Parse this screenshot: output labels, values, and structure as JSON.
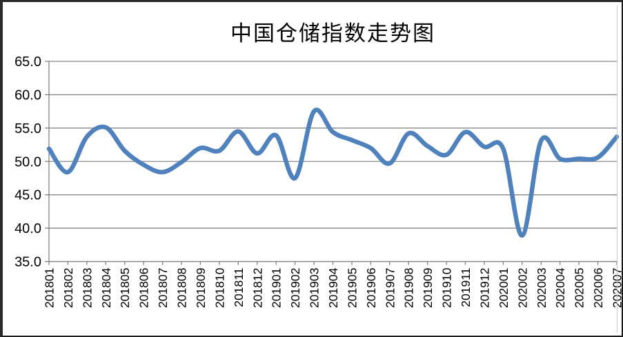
{
  "chart_data": {
    "type": "line",
    "title": "中国仓储指数走势图",
    "categories": [
      "201801",
      "201802",
      "201803",
      "201804",
      "201805",
      "201806",
      "201807",
      "201808",
      "201809",
      "201810",
      "201811",
      "201812",
      "201901",
      "201902",
      "201903",
      "201904",
      "201905",
      "201906",
      "201907",
      "201908",
      "201909",
      "201910",
      "201911",
      "201912",
      "202001",
      "202002",
      "202003",
      "202004",
      "202005",
      "202006",
      "202007"
    ],
    "values": [
      51.9,
      48.4,
      53.7,
      55.1,
      51.6,
      49.5,
      48.4,
      49.9,
      52.0,
      51.6,
      54.5,
      51.2,
      53.9,
      47.5,
      57.5,
      54.4,
      53.2,
      52.0,
      49.7,
      54.2,
      52.3,
      51.0,
      54.4,
      52.2,
      51.9,
      38.9,
      53.1,
      50.4,
      50.4,
      50.6,
      53.7
    ],
    "yticks": [
      "65.0",
      "60.0",
      "55.0",
      "50.0",
      "45.0",
      "40.0",
      "35.0"
    ],
    "ylim": [
      35.0,
      65.0
    ],
    "ytick_step": 5.0,
    "xlabel": "",
    "ylabel": "",
    "legend": "none",
    "grid": true,
    "x_label_rotation": -90,
    "line_color": "#4F81BD",
    "grid_color": "#878787",
    "axis_color": "#808080",
    "text_color": "#000000",
    "smooth": true
  }
}
